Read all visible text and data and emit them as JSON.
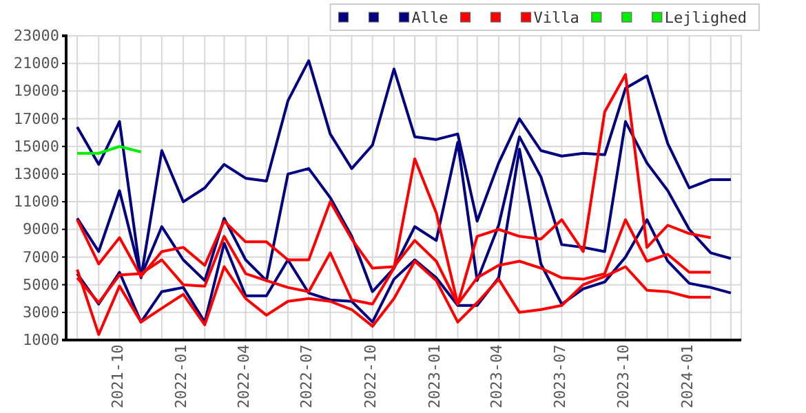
{
  "chart_data": {
    "type": "line",
    "x": [
      "2021-08",
      "2021-09",
      "2021-10",
      "2021-11",
      "2021-12",
      "2022-01",
      "2022-02",
      "2022-03",
      "2022-04",
      "2022-05",
      "2022-06",
      "2022-07",
      "2022-08",
      "2022-09",
      "2022-10",
      "2022-11",
      "2022-12",
      "2023-01",
      "2023-02",
      "2023-03",
      "2023-04",
      "2023-05",
      "2023-06",
      "2023-07",
      "2023-08",
      "2023-09",
      "2023-10",
      "2023-11",
      "2023-12",
      "2024-01",
      "2024-02",
      "2024-03"
    ],
    "series": [
      {
        "color": "#000080",
        "values": [
          16400,
          13700,
          16800,
          5500,
          14700,
          11000,
          12000,
          13700,
          12700,
          12500,
          18300,
          21200,
          15900,
          13400,
          15100,
          20600,
          15700,
          15500,
          15900,
          9600,
          13800,
          17000,
          14700,
          14300,
          14500,
          14400,
          19200,
          20100,
          15200,
          12000,
          12600,
          12600
        ]
      },
      {
        "color": "#000080",
        "values": [
          9800,
          7400,
          11800,
          5600,
          9200,
          6800,
          5300,
          9800,
          6800,
          5300,
          13000,
          13400,
          11300,
          8500,
          4500,
          6200,
          9200,
          8200,
          15300,
          5300,
          9300,
          15700,
          12800,
          7900,
          7700,
          7400,
          16800,
          13800,
          11800,
          9000,
          7300,
          6900
        ]
      },
      {
        "name": "Alle",
        "color": "#000080",
        "values": [
          5800,
          3600,
          5900,
          2300,
          4500,
          4800,
          2300,
          8000,
          4200,
          4200,
          6800,
          4400,
          3900,
          3800,
          2300,
          5400,
          6800,
          5500,
          3500,
          3500,
          5500,
          14800,
          6500,
          3600,
          4700,
          5200,
          7000,
          9700,
          6700,
          5100,
          4800,
          4400
        ]
      },
      {
        "color": "#ff0000",
        "values": [
          9700,
          6500,
          8400,
          5600,
          7400,
          7700,
          6400,
          9600,
          8100,
          8100,
          6800,
          6800,
          11000,
          8300,
          6200,
          6300,
          8200,
          6700,
          3600,
          8500,
          9000,
          8500,
          8300,
          9700,
          7400,
          17500,
          20200,
          7700,
          9300,
          8700,
          8400,
          null
        ]
      },
      {
        "color": "#ff0000",
        "values": [
          5500,
          3700,
          5700,
          5800,
          6800,
          5000,
          4900,
          8500,
          5800,
          5300,
          4800,
          4500,
          7300,
          3900,
          3600,
          6200,
          14100,
          10200,
          3600,
          5500,
          6400,
          6700,
          6200,
          5500,
          5400,
          5800,
          9700,
          6700,
          7200,
          5900,
          5900,
          null
        ]
      },
      {
        "name": "Villa",
        "color": "#ff0000",
        "values": [
          6100,
          1400,
          4900,
          2300,
          3300,
          4300,
          2100,
          6300,
          4000,
          2800,
          3800,
          4000,
          3800,
          3200,
          2000,
          4000,
          6700,
          5300,
          2300,
          3700,
          5400,
          3000,
          3200,
          3500,
          5000,
          5600,
          6300,
          4600,
          4500,
          4100,
          4100,
          null
        ]
      },
      {
        "color": "#00ee00",
        "values": [
          null,
          null,
          null,
          null,
          null,
          null,
          null,
          null,
          null,
          null,
          null,
          null,
          null,
          null,
          null,
          null,
          null,
          null,
          null,
          null,
          null,
          null,
          null,
          null,
          null,
          null,
          null,
          null,
          null,
          null,
          null,
          null
        ]
      },
      {
        "color": "#00ee00",
        "values": [
          null,
          null,
          null,
          null,
          null,
          null,
          null,
          null,
          null,
          null,
          null,
          null,
          null,
          null,
          null,
          null,
          null,
          null,
          null,
          null,
          null,
          null,
          null,
          null,
          null,
          null,
          null,
          null,
          null,
          null,
          null,
          null
        ]
      },
      {
        "name": "Lejlighed",
        "color": "#00ee00",
        "values": [
          14500,
          14500,
          15000,
          14600,
          null,
          null,
          null,
          null,
          null,
          null,
          null,
          null,
          null,
          null,
          null,
          null,
          null,
          null,
          null,
          null,
          null,
          null,
          null,
          null,
          null,
          null,
          null,
          null,
          null,
          null,
          null,
          null
        ]
      }
    ],
    "xlim": [
      "2021-07-16",
      "2024-03-16"
    ],
    "xticks": [
      {
        "value": "2021-08",
        "label": null
      },
      {
        "value": "2021-09",
        "label": null
      },
      "2021-10",
      {
        "value": "2021-11",
        "label": null
      },
      {
        "value": "2021-12",
        "label": null
      },
      "2022-01",
      {
        "value": "2022-02",
        "label": null
      },
      {
        "value": "2022-03",
        "label": null
      },
      "2022-04",
      {
        "value": "2022-05",
        "label": null
      },
      {
        "value": "2022-06",
        "label": null
      },
      "2022-07",
      {
        "value": "2022-08",
        "label": null
      },
      {
        "value": "2022-09",
        "label": null
      },
      "2022-10",
      {
        "value": "2022-11",
        "label": null
      },
      {
        "value": "2022-12",
        "label": null
      },
      "2023-01",
      {
        "value": "2023-02",
        "label": null
      },
      {
        "value": "2023-03",
        "label": null
      },
      "2023-04",
      {
        "value": "2023-05",
        "label": null
      },
      {
        "value": "2023-06",
        "label": null
      },
      "2023-07",
      {
        "value": "2023-08",
        "label": null
      },
      {
        "value": "2023-09",
        "label": null
      },
      "2023-10",
      {
        "value": "2023-11",
        "label": null
      },
      {
        "value": "2023-12",
        "label": null
      },
      "2024-01",
      {
        "value": "2024-02",
        "label": null
      },
      {
        "value": "2024-03",
        "label": null
      }
    ],
    "ylim": [
      1000,
      23000
    ],
    "yticks": [
      1000,
      3000,
      5000,
      7000,
      9000,
      11000,
      13000,
      15000,
      17000,
      19000,
      21000,
      23000
    ],
    "grid": true,
    "legend": "top right",
    "marker": "none",
    "line_style": "solid"
  }
}
